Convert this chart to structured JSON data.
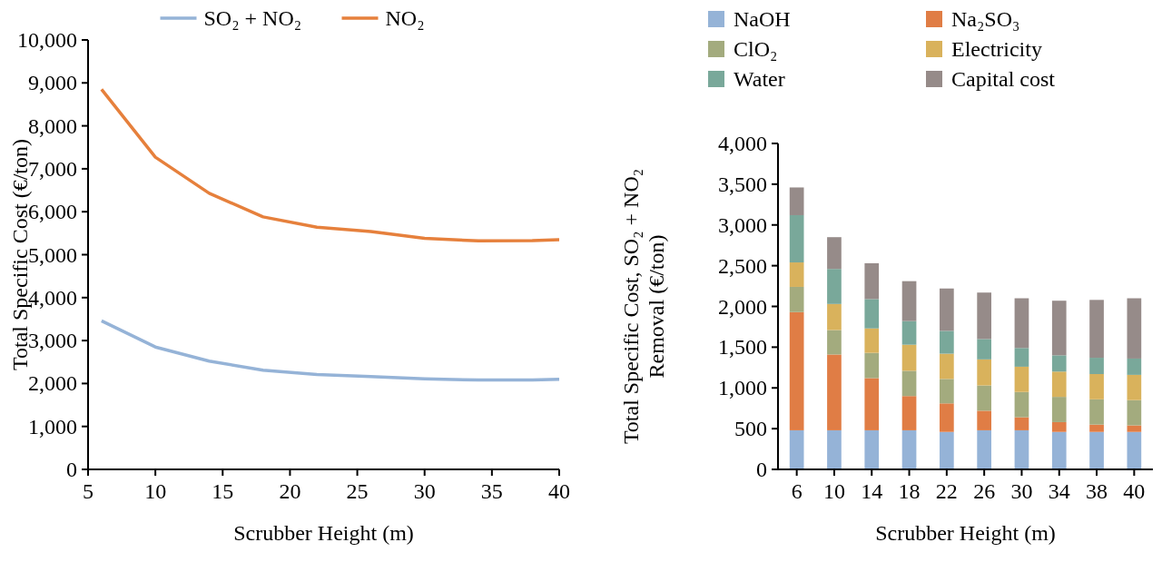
{
  "chart_data": [
    {
      "type": "line",
      "xlabel": "Scrubber Height (m)",
      "ylabel": "Total Specific Cost (€/ton)",
      "xlim": [
        5,
        40
      ],
      "xticks": [
        5,
        10,
        15,
        20,
        25,
        30,
        35,
        40
      ],
      "ylim": [
        0,
        10000
      ],
      "yticks": [
        {
          "value": 0,
          "label": "0"
        },
        {
          "value": 1000,
          "label": "1,000"
        },
        {
          "value": 2000,
          "label": "2,000"
        },
        {
          "value": 3000,
          "label": "3,000"
        },
        {
          "value": 4000,
          "label": "4,000"
        },
        {
          "value": 5000,
          "label": "5,000"
        },
        {
          "value": 6000,
          "label": "6,000"
        },
        {
          "value": 7000,
          "label": "7,000"
        },
        {
          "value": 8000,
          "label": "8,000"
        },
        {
          "value": 9000,
          "label": "9,000"
        },
        {
          "value": 10000,
          "label": "10,000"
        }
      ],
      "grid": false,
      "legend": "top",
      "marker": "none",
      "line_style": "solid",
      "x": [
        6,
        10,
        14,
        18,
        22,
        26,
        30,
        34,
        38,
        40
      ],
      "series": [
        {
          "name": "SO₂ + NO₂",
          "color": "#95b3d7",
          "values": [
            3460,
            2850,
            2520,
            2310,
            2210,
            2160,
            2110,
            2080,
            2080,
            2100
          ]
        },
        {
          "name": "NO₂",
          "color": "#e6803c",
          "values": [
            8850,
            7270,
            6430,
            5880,
            5640,
            5540,
            5380,
            5320,
            5330,
            5350
          ]
        }
      ]
    },
    {
      "type": "bar",
      "stacked": true,
      "xlabel": "Scrubber Height (m)",
      "ylabel": "Total Specific Cost, SO₂ + NO₂ Removal (€/ton)",
      "categories": [
        "6",
        "10",
        "14",
        "18",
        "22",
        "26",
        "30",
        "34",
        "38",
        "40"
      ],
      "ylim": [
        0,
        4000
      ],
      "yticks": [
        {
          "value": 0,
          "label": "0"
        },
        {
          "value": 500,
          "label": "500"
        },
        {
          "value": 1000,
          "label": "1,000"
        },
        {
          "value": 1500,
          "label": "1,500"
        },
        {
          "value": 2000,
          "label": "2,000"
        },
        {
          "value": 2500,
          "label": "2,500"
        },
        {
          "value": 3000,
          "label": "3,000"
        },
        {
          "value": 3500,
          "label": "3,500"
        },
        {
          "value": 4000,
          "label": "4,000"
        }
      ],
      "grid": false,
      "legend": "top",
      "series": [
        {
          "name": "NaOH",
          "color": "#95b3d7",
          "values": [
            480,
            480,
            480,
            480,
            460,
            480,
            480,
            460,
            460,
            460
          ]
        },
        {
          "name": "Na₂SO₃",
          "color": "#e07d45",
          "values": [
            1450,
            930,
            640,
            420,
            350,
            240,
            160,
            120,
            90,
            80
          ]
        },
        {
          "name": "ClO₂",
          "color": "#a3ab7e",
          "values": [
            310,
            300,
            310,
            310,
            300,
            310,
            310,
            310,
            310,
            310
          ]
        },
        {
          "name": "Electricity",
          "color": "#d9b25c",
          "values": [
            300,
            320,
            300,
            320,
            310,
            320,
            310,
            310,
            310,
            310
          ]
        },
        {
          "name": "Water",
          "color": "#79a89a",
          "values": [
            580,
            430,
            360,
            290,
            280,
            250,
            230,
            200,
            200,
            200
          ]
        },
        {
          "name": "Capital cost",
          "color": "#968b89",
          "values": [
            340,
            390,
            440,
            490,
            520,
            570,
            610,
            670,
            710,
            740
          ]
        }
      ]
    }
  ]
}
